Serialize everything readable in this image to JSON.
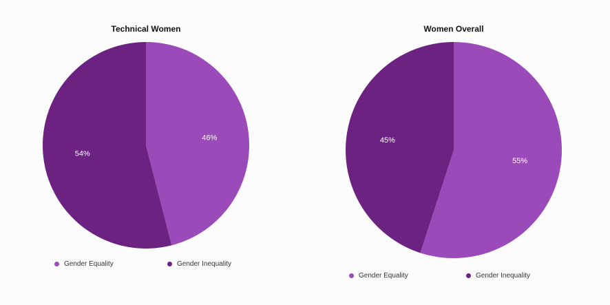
{
  "chart_data": [
    {
      "type": "pie",
      "title": "Technical Women",
      "categories": [
        "Gender Equality",
        "Gender Inequality"
      ],
      "values": [
        46,
        54
      ],
      "labels": [
        "46%",
        "54%"
      ],
      "colors": [
        "#9b4ab9",
        "#6b2280"
      ],
      "legend": "bottom"
    },
    {
      "type": "pie",
      "title": "Women Overall",
      "categories": [
        "Gender Equality",
        "Gender Inequality"
      ],
      "values": [
        55,
        45
      ],
      "labels": [
        "55%",
        "45%"
      ],
      "colors": [
        "#9b4ab9",
        "#6b2280"
      ],
      "legend": "bottom"
    }
  ]
}
